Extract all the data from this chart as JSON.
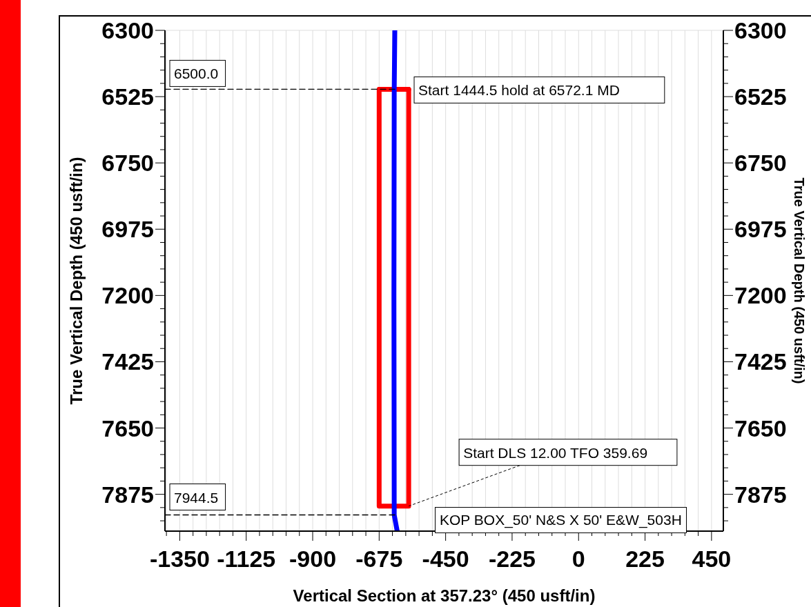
{
  "chart_data": {
    "type": "line",
    "xlabel": "Vertical Section at 357.23° (450 usft/in)",
    "ylabel": "True Vertical Depth (450 usft/in)",
    "y2label": "True Vertical Depth (450 usft/in)",
    "xlim": [
      -1400,
      490
    ],
    "ylim": [
      8000,
      6300
    ],
    "y2lim": [
      8000,
      6300
    ],
    "xticks": [
      {
        "value": -1395,
        "label": null
      },
      -1350,
      {
        "value": -1305,
        "label": null
      },
      {
        "value": -1260,
        "label": null
      },
      {
        "value": -1215,
        "label": null
      },
      {
        "value": -1170,
        "label": null
      },
      -1125,
      {
        "value": -1080,
        "label": null
      },
      {
        "value": -1035,
        "label": null
      },
      {
        "value": -990,
        "label": null
      },
      {
        "value": -945,
        "label": null
      },
      -900,
      {
        "value": -855,
        "label": null
      },
      {
        "value": -810,
        "label": null
      },
      {
        "value": -765,
        "label": null
      },
      {
        "value": -720,
        "label": null
      },
      -675,
      {
        "value": -630,
        "label": null
      },
      {
        "value": -585,
        "label": null
      },
      {
        "value": -540,
        "label": null
      },
      {
        "value": -495,
        "label": null
      },
      -450,
      {
        "value": -405,
        "label": null
      },
      {
        "value": -360,
        "label": null
      },
      {
        "value": -315,
        "label": null
      },
      {
        "value": -270,
        "label": null
      },
      -225,
      {
        "value": -180,
        "label": null
      },
      {
        "value": -135,
        "label": null
      },
      {
        "value": -90,
        "label": null
      },
      {
        "value": -45,
        "label": null
      },
      0,
      {
        "value": 45,
        "label": null
      },
      {
        "value": 90,
        "label": null
      },
      {
        "value": 135,
        "label": null
      },
      {
        "value": 180,
        "label": null
      },
      225,
      {
        "value": 270,
        "label": null
      },
      {
        "value": 315,
        "label": null
      },
      {
        "value": 360,
        "label": null
      },
      {
        "value": 405,
        "label": null
      },
      450
    ],
    "yticks": [
      6300,
      {
        "value": 6345,
        "label": null
      },
      {
        "value": 6390,
        "label": null
      },
      {
        "value": 6435,
        "label": null
      },
      {
        "value": 6480,
        "label": null
      },
      6525,
      {
        "value": 6570,
        "label": null
      },
      {
        "value": 6615,
        "label": null
      },
      {
        "value": 6660,
        "label": null
      },
      {
        "value": 6705,
        "label": null
      },
      6750,
      {
        "value": 6795,
        "label": null
      },
      {
        "value": 6840,
        "label": null
      },
      {
        "value": 6885,
        "label": null
      },
      {
        "value": 6930,
        "label": null
      },
      6975,
      {
        "value": 7020,
        "label": null
      },
      {
        "value": 7065,
        "label": null
      },
      {
        "value": 7110,
        "label": null
      },
      {
        "value": 7155,
        "label": null
      },
      7200,
      {
        "value": 7245,
        "label": null
      },
      {
        "value": 7290,
        "label": null
      },
      {
        "value": 7335,
        "label": null
      },
      {
        "value": 7380,
        "label": null
      },
      7425,
      {
        "value": 7470,
        "label": null
      },
      {
        "value": 7515,
        "label": null
      },
      {
        "value": 7560,
        "label": null
      },
      {
        "value": 7605,
        "label": null
      },
      7650,
      {
        "value": 7695,
        "label": null
      },
      {
        "value": 7740,
        "label": null
      },
      {
        "value": 7785,
        "label": null
      },
      {
        "value": 7830,
        "label": null
      },
      7875,
      {
        "value": 7920,
        "label": null
      },
      {
        "value": 7965,
        "label": null
      }
    ],
    "y2ticks": [
      6300,
      {
        "value": 6345,
        "label": null
      },
      {
        "value": 6390,
        "label": null
      },
      {
        "value": 6435,
        "label": null
      },
      {
        "value": 6480,
        "label": null
      },
      6525,
      {
        "value": 6570,
        "label": null
      },
      {
        "value": 6615,
        "label": null
      },
      {
        "value": 6660,
        "label": null
      },
      {
        "value": 6705,
        "label": null
      },
      6750,
      {
        "value": 6795,
        "label": null
      },
      {
        "value": 6840,
        "label": null
      },
      {
        "value": 6885,
        "label": null
      },
      {
        "value": 6930,
        "label": null
      },
      6975,
      {
        "value": 7020,
        "label": null
      },
      {
        "value": 7065,
        "label": null
      },
      {
        "value": 7110,
        "label": null
      },
      {
        "value": 7155,
        "label": null
      },
      7200,
      {
        "value": 7245,
        "label": null
      },
      {
        "value": 7290,
        "label": null
      },
      {
        "value": 7335,
        "label": null
      },
      {
        "value": 7380,
        "label": null
      },
      7425,
      {
        "value": 7470,
        "label": null
      },
      {
        "value": 7515,
        "label": null
      },
      {
        "value": 7560,
        "label": null
      },
      {
        "value": 7605,
        "label": null
      },
      7650,
      {
        "value": 7695,
        "label": null
      },
      {
        "value": 7740,
        "label": null
      },
      {
        "value": 7785,
        "label": null
      },
      {
        "value": 7830,
        "label": null
      },
      7875,
      {
        "value": 7920,
        "label": null
      },
      {
        "value": 7965,
        "label": null
      }
    ],
    "grid": true,
    "marker": "none",
    "series": [
      {
        "color": "#ff0000",
        "x": [
          -675,
          -675,
          -575,
          -575
        ],
        "values": [
          6500,
          7915,
          7915,
          6500
        ]
      },
      {
        "color": "#ff0000",
        "x": [
          -675,
          -575
        ],
        "values": [
          6500,
          6500
        ]
      },
      {
        "color": "#0000ff",
        "x": [
          -622,
          -624,
          -625,
          -624,
          -614
        ],
        "values": [
          6300,
          6500,
          7200,
          7945,
          8000
        ]
      },
      {
        "color": "#000000",
        "line_style": "dashed",
        "x": [
          -1400,
          -622
        ],
        "values": [
          6500,
          6500
        ]
      },
      {
        "color": "#000000",
        "line_style": "dashed",
        "x": [
          -1400,
          -622
        ],
        "values": [
          7945,
          7945
        ]
      }
    ],
    "annotations": [
      {
        "text": "6500.0",
        "x": -1400,
        "y": 6500
      },
      {
        "text": "Start 1444.5 hold at 6572.1 MD",
        "x": -622,
        "y": 6500
      },
      {
        "text": "7944.5",
        "x": -1400,
        "y": 7945
      },
      {
        "text": "Start DLS 12.00 TFO 359.69",
        "x": -575,
        "y": 7915
      },
      "KOP BOX_50' N&S X 50' E&W_503H"
    ]
  }
}
